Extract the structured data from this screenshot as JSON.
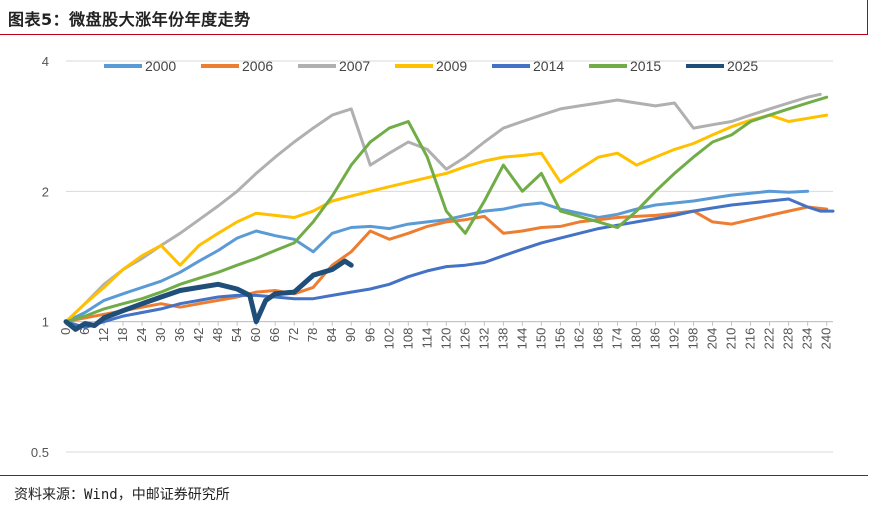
{
  "header": {
    "title": "图表5：微盘股大涨年份年度走势",
    "source": "资料来源：Wind，中邮证券研究所"
  },
  "colors": {
    "rule": "#c0001a",
    "grid": "#d9d9d9"
  },
  "chart_data": {
    "type": "line",
    "title": "微盘股大涨年份年度走势",
    "xlabel": "",
    "ylabel": "",
    "y_scale": "log",
    "ylim": [
      0.5,
      4
    ],
    "xlim": [
      0,
      242
    ],
    "y_ticks": [
      0.5,
      1,
      2,
      4
    ],
    "x_ticks": [
      0,
      6,
      12,
      18,
      24,
      30,
      36,
      42,
      48,
      54,
      60,
      66,
      72,
      78,
      84,
      90,
      96,
      102,
      108,
      114,
      120,
      126,
      132,
      138,
      144,
      150,
      156,
      162,
      168,
      174,
      180,
      186,
      192,
      198,
      204,
      210,
      216,
      222,
      228,
      234,
      240
    ],
    "legend_position": "top",
    "series": [
      {
        "name": "2000",
        "color": "#5b9bd5",
        "width": 3,
        "x": [
          0,
          6,
          12,
          18,
          24,
          30,
          36,
          42,
          48,
          54,
          60,
          66,
          72,
          78,
          84,
          90,
          96,
          102,
          108,
          114,
          120,
          126,
          132,
          138,
          144,
          150,
          156,
          162,
          168,
          174,
          180,
          186,
          192,
          198,
          204,
          210,
          216,
          222,
          228,
          234
        ],
        "values": [
          1.0,
          1.05,
          1.12,
          1.16,
          1.2,
          1.24,
          1.3,
          1.38,
          1.46,
          1.56,
          1.62,
          1.58,
          1.55,
          1.45,
          1.6,
          1.65,
          1.66,
          1.64,
          1.68,
          1.7,
          1.72,
          1.76,
          1.8,
          1.82,
          1.86,
          1.88,
          1.82,
          1.78,
          1.74,
          1.77,
          1.82,
          1.86,
          1.88,
          1.9,
          1.93,
          1.96,
          1.98,
          2.0,
          1.99,
          2.0
        ]
      },
      {
        "name": "2006",
        "color": "#ed7d31",
        "width": 3,
        "x": [
          0,
          6,
          12,
          18,
          24,
          30,
          36,
          42,
          48,
          54,
          60,
          66,
          72,
          78,
          84,
          90,
          96,
          102,
          108,
          114,
          120,
          126,
          132,
          138,
          144,
          150,
          156,
          162,
          168,
          174,
          180,
          186,
          192,
          198,
          204,
          210,
          216,
          222,
          228,
          234,
          240
        ],
        "values": [
          1.0,
          1.02,
          1.04,
          1.06,
          1.08,
          1.1,
          1.08,
          1.1,
          1.12,
          1.14,
          1.17,
          1.18,
          1.16,
          1.2,
          1.35,
          1.45,
          1.62,
          1.55,
          1.6,
          1.66,
          1.7,
          1.72,
          1.75,
          1.6,
          1.62,
          1.65,
          1.66,
          1.7,
          1.72,
          1.74,
          1.75,
          1.76,
          1.78,
          1.8,
          1.7,
          1.68,
          1.72,
          1.76,
          1.8,
          1.84,
          1.82
        ]
      },
      {
        "name": "2007",
        "color": "#b0b0b0",
        "width": 3,
        "x": [
          0,
          6,
          12,
          18,
          24,
          30,
          36,
          42,
          48,
          54,
          60,
          66,
          72,
          78,
          84,
          90,
          96,
          102,
          108,
          114,
          120,
          126,
          132,
          138,
          144,
          150,
          156,
          162,
          168,
          174,
          180,
          186,
          192,
          198,
          204,
          210,
          216,
          222,
          228,
          234,
          238
        ],
        "values": [
          1.0,
          1.1,
          1.22,
          1.32,
          1.4,
          1.5,
          1.6,
          1.72,
          1.85,
          2.0,
          2.2,
          2.4,
          2.6,
          2.8,
          3.0,
          3.1,
          2.3,
          2.45,
          2.6,
          2.5,
          2.25,
          2.4,
          2.6,
          2.8,
          2.9,
          3.0,
          3.1,
          3.15,
          3.2,
          3.25,
          3.2,
          3.15,
          3.2,
          2.8,
          2.85,
          2.9,
          3.0,
          3.1,
          3.2,
          3.3,
          3.35
        ]
      },
      {
        "name": "2009",
        "color": "#ffc000",
        "width": 3,
        "x": [
          0,
          6,
          12,
          18,
          24,
          30,
          36,
          42,
          48,
          54,
          60,
          66,
          72,
          78,
          84,
          90,
          96,
          102,
          108,
          114,
          120,
          126,
          132,
          138,
          144,
          150,
          156,
          162,
          168,
          174,
          180,
          186,
          192,
          198,
          204,
          210,
          216,
          222,
          228,
          234,
          240
        ],
        "values": [
          1.0,
          1.1,
          1.2,
          1.32,
          1.42,
          1.5,
          1.35,
          1.5,
          1.6,
          1.7,
          1.78,
          1.76,
          1.74,
          1.8,
          1.9,
          1.95,
          2.0,
          2.05,
          2.1,
          2.15,
          2.2,
          2.28,
          2.35,
          2.4,
          2.42,
          2.45,
          2.1,
          2.25,
          2.4,
          2.45,
          2.3,
          2.4,
          2.5,
          2.58,
          2.7,
          2.82,
          2.92,
          3.0,
          2.9,
          2.95,
          3.0
        ]
      },
      {
        "name": "2014",
        "color": "#4472c4",
        "width": 3,
        "x": [
          0,
          6,
          12,
          18,
          24,
          30,
          36,
          42,
          48,
          54,
          60,
          66,
          72,
          78,
          84,
          90,
          96,
          102,
          108,
          114,
          120,
          126,
          132,
          138,
          144,
          150,
          156,
          162,
          168,
          174,
          180,
          186,
          192,
          198,
          204,
          210,
          216,
          222,
          228,
          234,
          238,
          242
        ],
        "values": [
          1.0,
          0.97,
          1.0,
          1.03,
          1.05,
          1.07,
          1.1,
          1.12,
          1.14,
          1.15,
          1.15,
          1.14,
          1.13,
          1.13,
          1.15,
          1.17,
          1.19,
          1.22,
          1.27,
          1.31,
          1.34,
          1.35,
          1.37,
          1.42,
          1.47,
          1.52,
          1.56,
          1.6,
          1.64,
          1.67,
          1.7,
          1.73,
          1.76,
          1.8,
          1.83,
          1.86,
          1.88,
          1.9,
          1.92,
          1.84,
          1.8,
          1.8
        ]
      },
      {
        "name": "2015",
        "color": "#70ad47",
        "width": 3,
        "x": [
          0,
          6,
          12,
          18,
          24,
          30,
          36,
          42,
          48,
          54,
          60,
          66,
          72,
          78,
          84,
          90,
          96,
          102,
          108,
          114,
          120,
          126,
          132,
          138,
          144,
          150,
          156,
          162,
          168,
          174,
          180,
          186,
          192,
          198,
          204,
          210,
          216,
          222,
          228,
          234,
          240
        ],
        "values": [
          1.0,
          1.03,
          1.07,
          1.1,
          1.13,
          1.17,
          1.22,
          1.26,
          1.3,
          1.35,
          1.4,
          1.46,
          1.52,
          1.7,
          1.95,
          2.3,
          2.6,
          2.8,
          2.9,
          2.4,
          1.8,
          1.6,
          1.9,
          2.3,
          2.0,
          2.2,
          1.8,
          1.75,
          1.7,
          1.65,
          1.8,
          2.0,
          2.2,
          2.4,
          2.6,
          2.7,
          2.9,
          3.0,
          3.1,
          3.2,
          3.3
        ]
      },
      {
        "name": "2025",
        "color": "#1f4e79",
        "width": 5,
        "x": [
          0,
          3,
          6,
          9,
          12,
          18,
          24,
          30,
          36,
          42,
          48,
          54,
          58,
          60,
          63,
          66,
          72,
          78,
          84,
          88,
          90
        ],
        "values": [
          1.0,
          0.96,
          0.99,
          0.98,
          1.02,
          1.06,
          1.1,
          1.14,
          1.18,
          1.2,
          1.22,
          1.19,
          1.15,
          1.0,
          1.12,
          1.16,
          1.17,
          1.28,
          1.32,
          1.38,
          1.35
        ]
      }
    ]
  }
}
